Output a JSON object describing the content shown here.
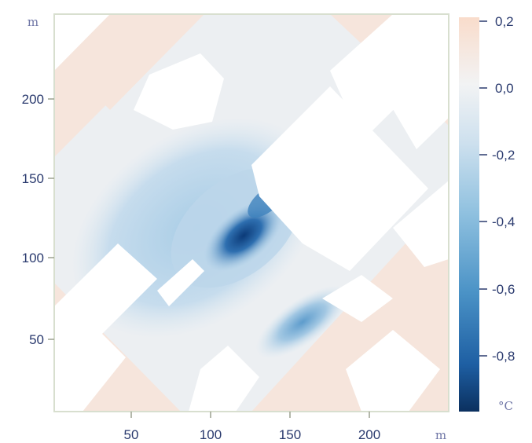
{
  "map": {
    "x_unit": "m",
    "y_unit": "m",
    "x_ticks": [
      "50",
      "100",
      "150",
      "200"
    ],
    "y_ticks": [
      "50",
      "100",
      "150",
      "200"
    ],
    "x_range": [
      0,
      250
    ],
    "y_range": [
      0,
      250
    ],
    "building_color": "#ffffff",
    "frame_color": "#d8dfcf"
  },
  "colorbar": {
    "unit": "°C",
    "ticks": [
      "0,2",
      "0,0",
      "-0,2",
      "-0,4",
      "-0,6",
      "-0,8"
    ],
    "range": [
      -1.0,
      0.2
    ],
    "colors": [
      "#f9dccb",
      "#f2f3f4",
      "#cde0ee",
      "#8ec0df",
      "#4a92c6",
      "#1e5fa3",
      "#0b305f"
    ]
  }
}
